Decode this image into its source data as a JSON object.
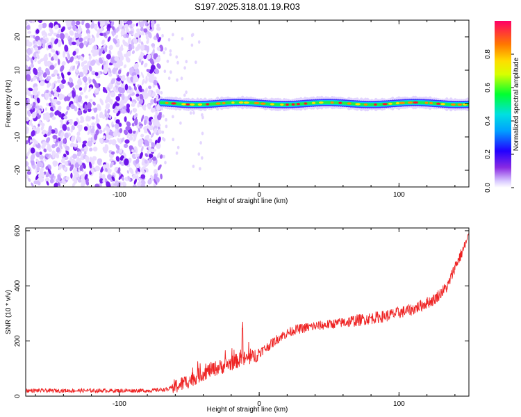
{
  "title": "S197.2025.318.01.19.R03",
  "chart_data": [
    {
      "type": "heatmap",
      "xlabel": "Height of straight line (km)",
      "ylabel": "Frequency (Hz)",
      "xlim": [
        -167,
        150
      ],
      "ylim": [
        -25,
        25
      ],
      "x_ticks": [
        -100,
        0,
        100
      ],
      "y_ticks": [
        -20,
        -10,
        0,
        10,
        20
      ],
      "colorbar": {
        "label": "Normalized spectral amplitude",
        "range": [
          0,
          1
        ],
        "ticks": [
          "0.0",
          "0.2",
          "0.4",
          "0.6",
          "0.8"
        ]
      },
      "features": {
        "noise_region_x": [
          -167,
          -70
        ],
        "signal_band_x": [
          -70,
          150
        ],
        "signal_band_frequency": 0
      }
    },
    {
      "type": "line",
      "xlabel": "Height of straight line (km)",
      "ylabel": "SNR (10 * v/v)",
      "xlim": [
        -167,
        150
      ],
      "ylim": [
        0,
        610
      ],
      "x_ticks": [
        -100,
        0,
        100
      ],
      "y_ticks": [
        0,
        200,
        400,
        600
      ],
      "series": [
        {
          "color": "#ee2222",
          "x": [
            -167,
            -140,
            -110,
            -80,
            -65,
            -55,
            -45,
            -35,
            -25,
            -15,
            -5,
            5,
            15,
            25,
            35,
            50,
            70,
            90,
            110,
            125,
            135,
            140,
            145,
            150
          ],
          "y": [
            20,
            20,
            20,
            20,
            25,
            45,
            70,
            95,
            110,
            130,
            140,
            175,
            215,
            240,
            250,
            260,
            275,
            290,
            315,
            350,
            400,
            470,
            520,
            580
          ]
        }
      ]
    }
  ]
}
